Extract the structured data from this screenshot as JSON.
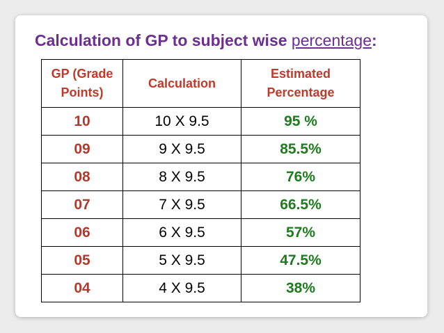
{
  "title": {
    "main": "Calculation of GP to subject wise ",
    "link": "percentage",
    "suffix": ":"
  },
  "table": {
    "headers": {
      "gp_line1": "GP (Grade",
      "gp_line2": "Points)",
      "calculation": "Calculation",
      "pct_line1": "Estimated",
      "pct_line2": "Percentage"
    },
    "rows": [
      {
        "gp": "10",
        "calc": "10 X 9.5",
        "pct": "95 %"
      },
      {
        "gp": "09",
        "calc": "9 X 9.5",
        "pct": "85.5%"
      },
      {
        "gp": "08",
        "calc": "8 X 9.5",
        "pct": "76%"
      },
      {
        "gp": "07",
        "calc": "7 X 9.5",
        "pct": "66.5%"
      },
      {
        "gp": "06",
        "calc": "6 X 9.5",
        "pct": "57%"
      },
      {
        "gp": "05",
        "calc": "5 X 9.5",
        "pct": "47.5%"
      },
      {
        "gp": "04",
        "calc": "4 X 9.5",
        "pct": "38%"
      }
    ]
  },
  "colors": {
    "title": "#6a2f8f",
    "header": "#c0392b",
    "gp_value": "#b03a2e",
    "percentage_value": "#1e7b1e"
  }
}
